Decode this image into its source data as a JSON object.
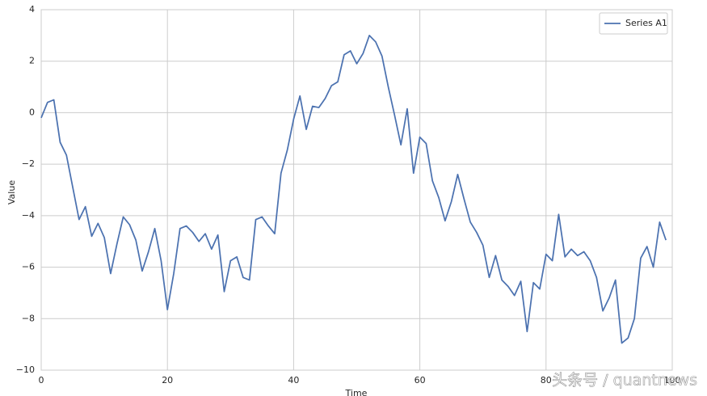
{
  "chart_data": {
    "type": "line",
    "xlabel": "Time",
    "ylabel": "Value",
    "x": [
      0,
      1,
      2,
      3,
      4,
      5,
      6,
      7,
      8,
      9,
      10,
      11,
      12,
      13,
      14,
      15,
      16,
      17,
      18,
      19,
      20,
      21,
      22,
      23,
      24,
      25,
      26,
      27,
      28,
      29,
      30,
      31,
      32,
      33,
      34,
      35,
      36,
      37,
      38,
      39,
      40,
      41,
      42,
      43,
      44,
      45,
      46,
      47,
      48,
      49,
      50,
      51,
      52,
      53,
      54,
      55,
      56,
      57,
      58,
      59,
      60,
      61,
      62,
      63,
      64,
      65,
      66,
      67,
      68,
      69,
      70,
      71,
      72,
      73,
      74,
      75,
      76,
      77,
      78,
      79,
      80,
      81,
      82,
      83,
      84,
      85,
      86,
      87,
      88,
      89,
      90,
      91,
      92,
      93,
      94,
      95,
      96,
      97,
      98,
      99
    ],
    "series": [
      {
        "name": "Series A1",
        "color": "#4c72b0",
        "values": [
          -0.2,
          0.4,
          0.5,
          -1.15,
          -1.65,
          -2.9,
          -4.15,
          -3.65,
          -4.8,
          -4.3,
          -4.85,
          -6.25,
          -5.1,
          -4.05,
          -4.35,
          -4.95,
          -6.15,
          -5.4,
          -4.5,
          -5.75,
          -7.65,
          -6.25,
          -4.5,
          -4.4,
          -4.65,
          -5.0,
          -4.7,
          -5.3,
          -4.75,
          -6.95,
          -5.75,
          -5.6,
          -6.4,
          -6.5,
          -4.15,
          -4.05,
          -4.4,
          -4.7,
          -2.35,
          -1.45,
          -0.25,
          0.65,
          -0.65,
          0.25,
          0.2,
          0.55,
          1.05,
          1.2,
          2.25,
          2.4,
          1.9,
          2.3,
          3.0,
          2.75,
          2.2,
          1.0,
          -0.1,
          -1.25,
          0.15,
          -2.35,
          -0.95,
          -1.2,
          -2.65,
          -3.3,
          -4.2,
          -3.45,
          -2.4,
          -3.35,
          -4.25,
          -4.65,
          -5.15,
          -6.4,
          -5.55,
          -6.5,
          -6.75,
          -7.1,
          -6.55,
          -8.5,
          -6.6,
          -6.85,
          -5.5,
          -5.75,
          -3.95,
          -5.6,
          -5.3,
          -5.55,
          -5.4,
          -5.75,
          -6.4,
          -7.7,
          -7.2,
          -6.5,
          -8.95,
          -8.75,
          -8.0,
          -5.65,
          -5.2,
          -6.0,
          -4.25,
          -4.95
        ]
      }
    ],
    "xlim": [
      0,
      100
    ],
    "xticks": [
      0,
      20,
      40,
      60,
      80,
      100
    ],
    "ylim": [
      -10,
      4
    ],
    "yticks": [
      {
        "value": -10,
        "label": "−10"
      },
      {
        "value": -8,
        "label": "−8"
      },
      {
        "value": -6,
        "label": "−6"
      },
      {
        "value": -4,
        "label": "−4"
      },
      {
        "value": -2,
        "label": "−2"
      },
      0,
      2,
      4
    ],
    "grid": true,
    "legend": "upper-right",
    "watermark": "头条号 / quantnews"
  }
}
